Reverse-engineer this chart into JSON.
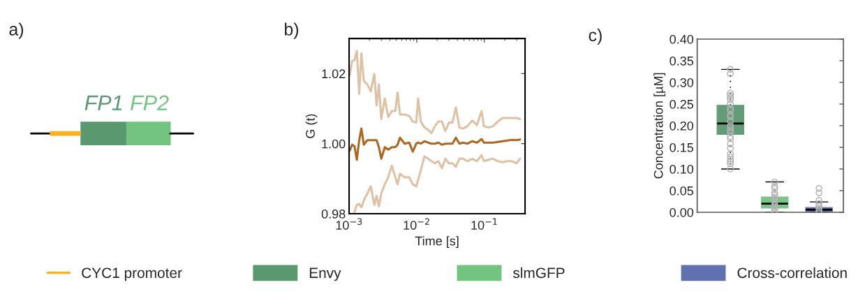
{
  "chart_data": [
    {
      "type": "other",
      "title": "a)",
      "annotations": [
        "FP1",
        "FP2"
      ],
      "legend": "bottom",
      "series": [
        {
          "name": "CYC1 promoter",
          "color": "#f9b21e"
        }
      ]
    },
    {
      "type": "line",
      "title": "b)",
      "xlabel": "Time [s]",
      "ylabel": "G (t)",
      "log": "x",
      "xlim": [
        0.001,
        0.4
      ],
      "ylim": [
        0.98,
        1.03
      ],
      "xticks": [
        {
          "value": 0.001,
          "label": "10$^{−3}$"
        },
        {
          "value": 0.01,
          "label": "10$^{−2}$"
        },
        {
          "value": 0.1,
          "label": "10$^{−1}$"
        }
      ],
      "yticks": [
        0.98,
        {
          "value": 1.0,
          "label": "1.00"
        },
        1.02
      ],
      "x": [
        0.00102,
        0.00111,
        0.0012,
        0.0013,
        0.00141,
        0.00152,
        0.00165,
        0.00186,
        0.00209,
        0.00236,
        0.00255,
        0.00276,
        0.00299,
        0.00337,
        0.00379,
        0.00428,
        0.00482,
        0.00521,
        0.00565,
        0.00662,
        0.00776,
        0.00874,
        0.00984,
        0.0105,
        0.0115,
        0.013,
        0.0147,
        0.0165,
        0.0186,
        0.0209,
        0.0236,
        0.0265,
        0.0299,
        0.0337,
        0.0379,
        0.0428,
        0.0482,
        0.0565,
        0.0662,
        0.0776,
        0.091,
        0.0984,
        0.115,
        0.135,
        0.158,
        0.186,
        0.218,
        0.255,
        0.299,
        0.337
      ],
      "series": [
        {
          "color": "#dfc2a6",
          "values": [
            1.0195,
            1.0236,
            1.0238,
            1.0265,
            1.0142,
            1.0258,
            1.0179,
            1.0169,
            1.0149,
            1.0199,
            1.0109,
            1.0169,
            1.007,
            1.0129,
            1.0076,
            1.0093,
            1.0093,
            1.0146,
            1.0083,
            1.0083,
            1.0079,
            1.0063,
            1.006,
            1.0129,
            1.0063,
            1.0046,
            1.004,
            1.003,
            1.005,
            1.0063,
            1.0063,
            1.0036,
            1.006,
            1.006,
            1.0103,
            1.0046,
            1.0043,
            1.005,
            1.0066,
            1.0053,
            1.0093,
            1.005,
            1.0046,
            1.005,
            1.0063,
            1.0073,
            1.0073,
            1.0073,
            1.0073,
            1.007
          ]
        },
        {
          "color": "#b0661f",
          "values": [
            0.998,
            0.9997,
            0.9993,
            0.9954,
            1.001,
            1.0043,
            0.9997,
            1.001,
            1.001,
            1.001,
            1.001,
            0.999,
            0.9957,
            0.999,
            0.9983,
            0.999,
            0.999,
            0.9997,
            1.0017,
            1.0,
            1.0003,
            0.9977,
            1.0,
            1.0003,
            1.0,
            1.0007,
            1.0003,
            1.0,
            1.0,
            1.0003,
            0.9997,
            1.0,
            1.0,
            1.0,
            1.0017,
            1.0,
            1.0003,
            1.0,
            1.0007,
            1.0003,
            1.0013,
            1.0003,
            1.0003,
            1.0003,
            1.0005,
            1.0007,
            1.0009,
            1.0011,
            1.001,
            1.0012
          ]
        },
        {
          "color": "#dfc2a6",
          "values": [
            null,
            null,
            0.9805,
            0.9825,
            0.9828,
            0.9818,
            0.9838,
            0.9858,
            0.9878,
            0.9825,
            0.9851,
            0.9821,
            0.9858,
            0.9884,
            0.9904,
            0.9937,
            0.9904,
            0.9884,
            0.9914,
            0.9904,
            0.9904,
            0.9884,
            0.9878,
            0.9897,
            0.9924,
            0.9964,
            0.9957,
            0.995,
            0.9944,
            0.995,
            0.993,
            0.9957,
            0.9944,
            0.9944,
            0.9934,
            0.9957,
            0.9957,
            0.995,
            0.9957,
            0.995,
            0.9967,
            0.995,
            0.9954,
            0.9957,
            0.995,
            0.9947,
            0.995,
            0.995,
            0.9944,
            0.9957
          ]
        }
      ]
    },
    {
      "type": "box",
      "title": "c)",
      "ylabel": "Concentration [µM]",
      "categories": [
        null,
        null,
        null
      ],
      "tick_labels": "y",
      "legend": "bottom",
      "ylim": [
        0,
        0.4
      ],
      "yticks": [
        {
          "value": 0,
          "label": "0.00"
        },
        0.05,
        {
          "value": 0.1,
          "label": "0.10"
        },
        0.15,
        {
          "value": 0.2,
          "label": "0.20"
        },
        0.25,
        {
          "value": 0.3,
          "label": "0.30"
        },
        0.35,
        {
          "value": 0.4,
          "label": "0.40"
        }
      ],
      "series": [
        {
          "name": "Envy",
          "color": "#5a9870",
          "boxes": [
            {
              "low": 0.1,
              "q1": 0.18,
              "median": 0.205,
              "q3": 0.247,
              "high": 0.33,
              "outliers": [
                0.33,
                0.32,
                0.275,
                0.27,
                0.265,
                0.26,
                0.25,
                0.24,
                0.235,
                0.225,
                0.22,
                0.21,
                0.2,
                0.195,
                0.19,
                0.185,
                0.175,
                0.17,
                0.158,
                0.148,
                0.135,
                0.128,
                0.122,
                0.117,
                0.112,
                0.1
              ]
            },
            null,
            null
          ]
        },
        {
          "name": "slmGFP",
          "color": "#72c480",
          "boxes": [
            null,
            {
              "low": 0.0,
              "q1": 0.01,
              "median": 0.02,
              "q3": 0.035,
              "high": 0.07,
              "outliers": [
                0.07,
                0.06,
                0.055,
                0.045,
                0.04,
                0.035,
                0.03,
                0.025,
                0.02,
                0.015,
                0.01,
                0.005,
                0.0
              ]
            },
            null
          ]
        },
        {
          "name": "Cross-correlation",
          "color": "#6070b0",
          "boxes": [
            null,
            null,
            {
              "low": 0.0,
              "q1": 0.002,
              "median": 0.006,
              "q3": 0.011,
              "high": 0.024,
              "outliers": [
                0.055,
                0.045,
                0.027,
                0.02,
                0.015,
                0.01,
                0.005,
                0.0
              ]
            }
          ]
        }
      ]
    }
  ]
}
